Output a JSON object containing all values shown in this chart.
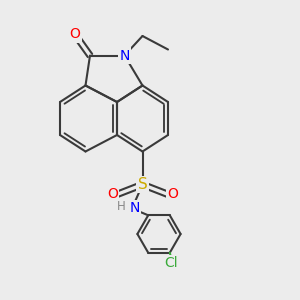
{
  "background_color": "#ececec",
  "bond_color": "#3a3a3a",
  "bond_width": 1.5,
  "atom_colors": {
    "O": "#ff0000",
    "N": "#0000ff",
    "S": "#ccaa00",
    "Cl": "#3aaa3a",
    "H": "#888888",
    "C": "#3a3a3a"
  },
  "font_size_atom": 10,
  "font_size_small": 8.5
}
